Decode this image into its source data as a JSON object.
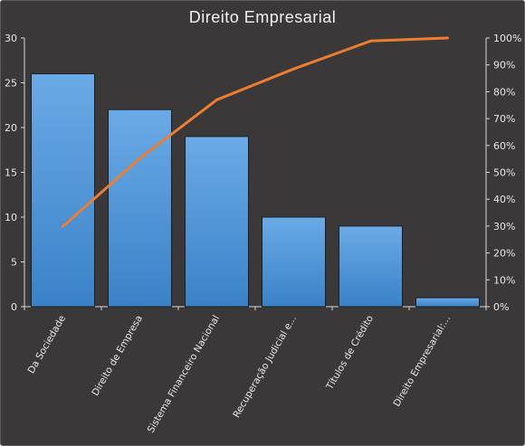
{
  "chart_data": {
    "type": "bar",
    "title": "Direito  Empresarial",
    "categories": [
      "Da Sociedade",
      "Direito de Empresa",
      "Sistema Financeiro Nacional",
      "Recuperação Judicial e...",
      "Títulos de Crédito",
      "Direito Empresarial:..."
    ],
    "series": [
      {
        "type": "bar",
        "values": [
          26,
          22,
          19,
          10,
          9,
          1
        ]
      },
      {
        "type": "line",
        "axis": "secondary",
        "values": [
          29.9,
          55.2,
          77.0,
          88.5,
          98.9,
          100
        ]
      }
    ],
    "y_ticks": [
      "0",
      "5",
      "10",
      "15",
      "20",
      "25",
      "30"
    ],
    "y2_ticks": [
      "0%",
      "10%",
      "20%",
      "30%",
      "40%",
      "50%",
      "60%",
      "70%",
      "80%",
      "90%",
      "100%"
    ],
    "ylim": [
      0,
      30
    ],
    "y2lim": [
      0,
      100
    ],
    "grid": false,
    "legend": "none"
  },
  "colors": {
    "background": "#3a3838",
    "bar_top": "#6aaae6",
    "bar_bottom": "#3a82c8",
    "bar_border": "#1e1e1e",
    "line": "#ed7d31",
    "axis": "#d9d9d9",
    "text": "#e8e8e8"
  }
}
